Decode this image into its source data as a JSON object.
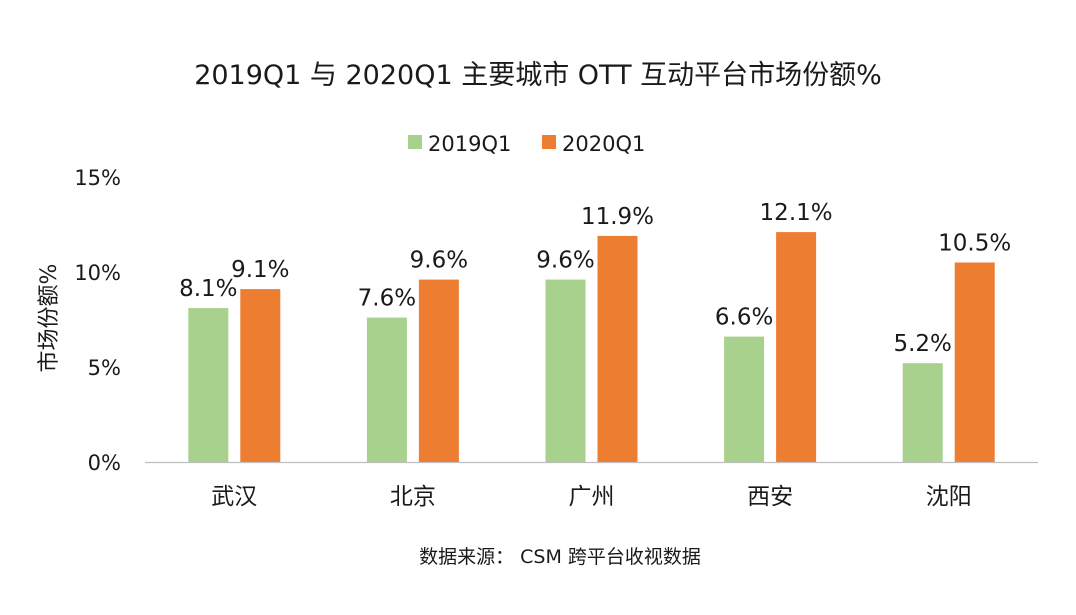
{
  "chart_data": {
    "type": "bar",
    "title": "2019Q1 与 2020Q1  主要城市 OTT 互动平台市场份额%",
    "xlabel": "",
    "ylabel": "市场份额%",
    "categories": [
      "武汉",
      "北京",
      "广州",
      "西安",
      "沈阳"
    ],
    "series": [
      {
        "name": "2019Q1",
        "color": "#a9d18e",
        "values": [
          8.1,
          7.6,
          9.6,
          6.6,
          5.2
        ],
        "labels": [
          "8.1%",
          "7.6%",
          "9.6%",
          "6.6%",
          "5.2%"
        ]
      },
      {
        "name": "2020Q1",
        "color": "#ed7d31",
        "values": [
          9.1,
          9.6,
          11.9,
          12.1,
          10.5
        ],
        "labels": [
          "9.1%",
          "9.6%",
          "11.9%",
          "12.1%",
          "10.5%"
        ]
      }
    ],
    "ylim": [
      0,
      15
    ],
    "yticks": [
      {
        "value": 0,
        "label": "0%"
      },
      {
        "value": 5,
        "label": "5%"
      },
      {
        "value": 10,
        "label": "10%"
      },
      {
        "value": 15,
        "label": "15%"
      }
    ],
    "grid": false,
    "legend_position": "top-center",
    "source": "数据来源：  CSM 跨平台收视数据"
  }
}
